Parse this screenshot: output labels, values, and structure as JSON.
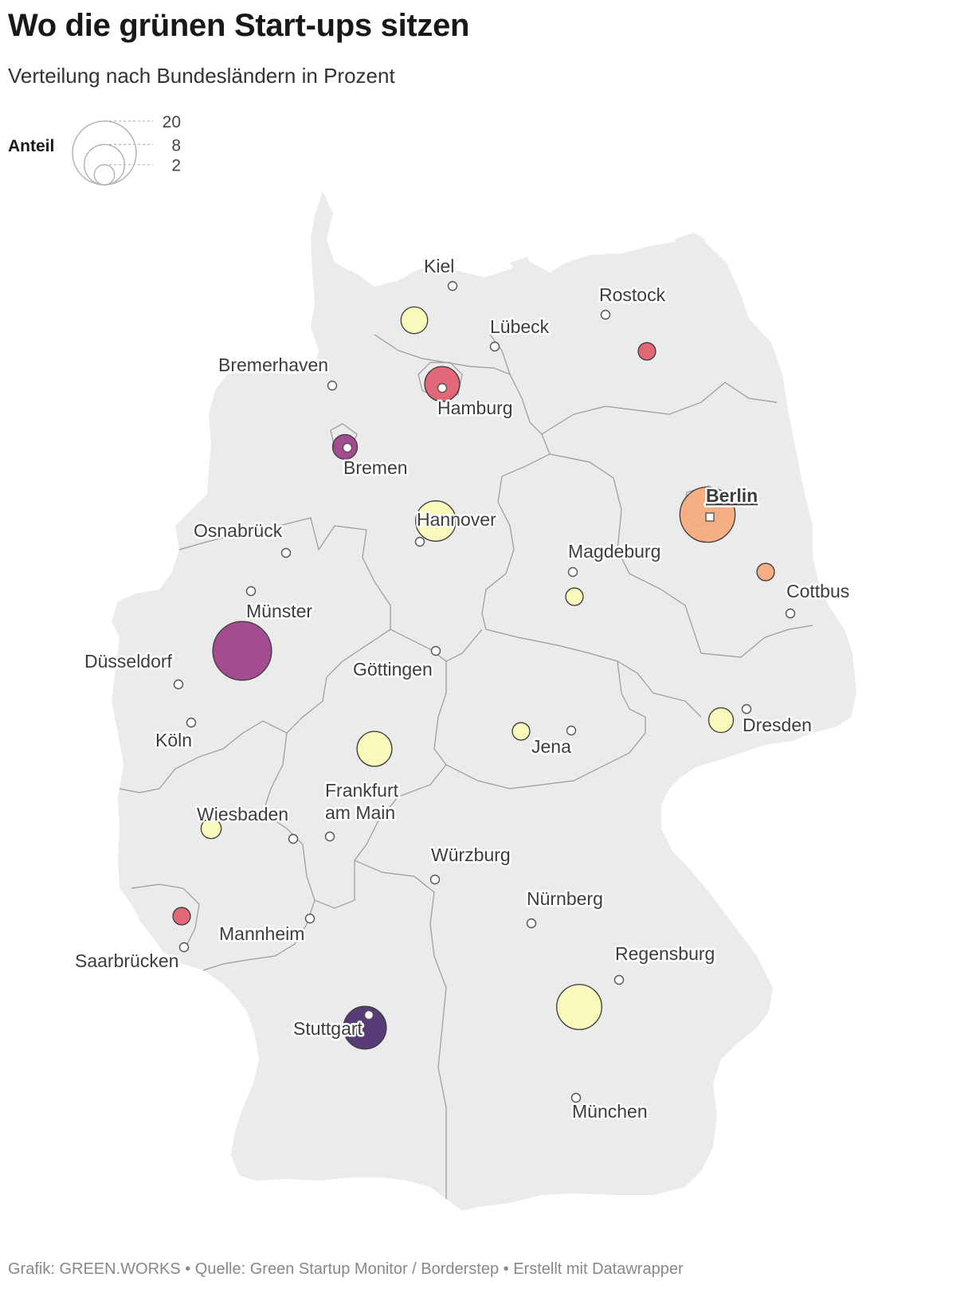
{
  "header": {
    "title": "Wo die grünen Start-ups sitzen",
    "subtitle": "Verteilung nach Bundesländern in Prozent"
  },
  "legend": {
    "title": "Anteil",
    "sizes": [
      {
        "label": "20",
        "value": 20
      },
      {
        "label": "8",
        "value": 8
      },
      {
        "label": "2",
        "value": 2
      }
    ]
  },
  "colors": {
    "land": "#ebebeb",
    "border": "#9a9a9a",
    "scale": [
      "#fafab6",
      "#f6a97b",
      "#e25c6c",
      "#9d3d8a",
      "#4b2c6e"
    ]
  },
  "chart_data": {
    "type": "symbol-map",
    "region": "Deutschland",
    "size_legend": [
      20,
      8,
      2
    ],
    "cities": [
      {
        "name": "Kiel"
      },
      {
        "name": "Rostock"
      },
      {
        "name": "Lübeck"
      },
      {
        "name": "Bremerhaven"
      },
      {
        "name": "Hamburg"
      },
      {
        "name": "Bremen"
      },
      {
        "name": "Berlin",
        "capital": true
      },
      {
        "name": "Hannover"
      },
      {
        "name": "Osnabrück"
      },
      {
        "name": "Magdeburg"
      },
      {
        "name": "Cottbus"
      },
      {
        "name": "Münster"
      },
      {
        "name": "Düsseldorf"
      },
      {
        "name": "Göttingen"
      },
      {
        "name": "Dresden"
      },
      {
        "name": "Köln"
      },
      {
        "name": "Jena"
      },
      {
        "name": "Frankfurt am Main"
      },
      {
        "name": "Wiesbaden"
      },
      {
        "name": "Würzburg"
      },
      {
        "name": "Nürnberg"
      },
      {
        "name": "Mannheim"
      },
      {
        "name": "Saarbrücken"
      },
      {
        "name": "Regensburg"
      },
      {
        "name": "Stuttgart"
      },
      {
        "name": "München"
      }
    ],
    "symbols": [
      {
        "region": "Schleswig-Holstein",
        "share": 3.5,
        "color": "#fafab6"
      },
      {
        "region": "Mecklenburg-Vorpommern",
        "share": 1.5,
        "color": "#e25c6c"
      },
      {
        "region": "Hamburg",
        "share": 6,
        "color": "#e25c6c"
      },
      {
        "region": "Bremen",
        "share": 3,
        "color": "#9d3d8a"
      },
      {
        "region": "Niedersachsen",
        "share": 8,
        "color": "#fafab6"
      },
      {
        "region": "Berlin",
        "share": 15,
        "color": "#f6a97b"
      },
      {
        "region": "Brandenburg",
        "share": 1.5,
        "color": "#f6a97b"
      },
      {
        "region": "Sachsen-Anhalt",
        "share": 1.5,
        "color": "#fafab6"
      },
      {
        "region": "Nordrhein-Westfalen",
        "share": 17,
        "color": "#9d3d8a"
      },
      {
        "region": "Sachsen",
        "share": 3,
        "color": "#fafab6"
      },
      {
        "region": "Thüringen",
        "share": 1.5,
        "color": "#fafab6"
      },
      {
        "region": "Hessen",
        "share": 6,
        "color": "#fafab6"
      },
      {
        "region": "Rheinland-Pfalz",
        "share": 2,
        "color": "#fafab6"
      },
      {
        "region": "Saarland",
        "share": 1.5,
        "color": "#e25c6c"
      },
      {
        "region": "Baden-Württemberg",
        "share": 9,
        "color": "#4b2c6e"
      },
      {
        "region": "Bayern",
        "share": 10,
        "color": "#fafab6"
      }
    ]
  },
  "footer": {
    "text": "Grafik: GREEN.WORKS • Quelle: Green Startup Monitor / Borderstep • Erstellt mit Datawrapper"
  }
}
